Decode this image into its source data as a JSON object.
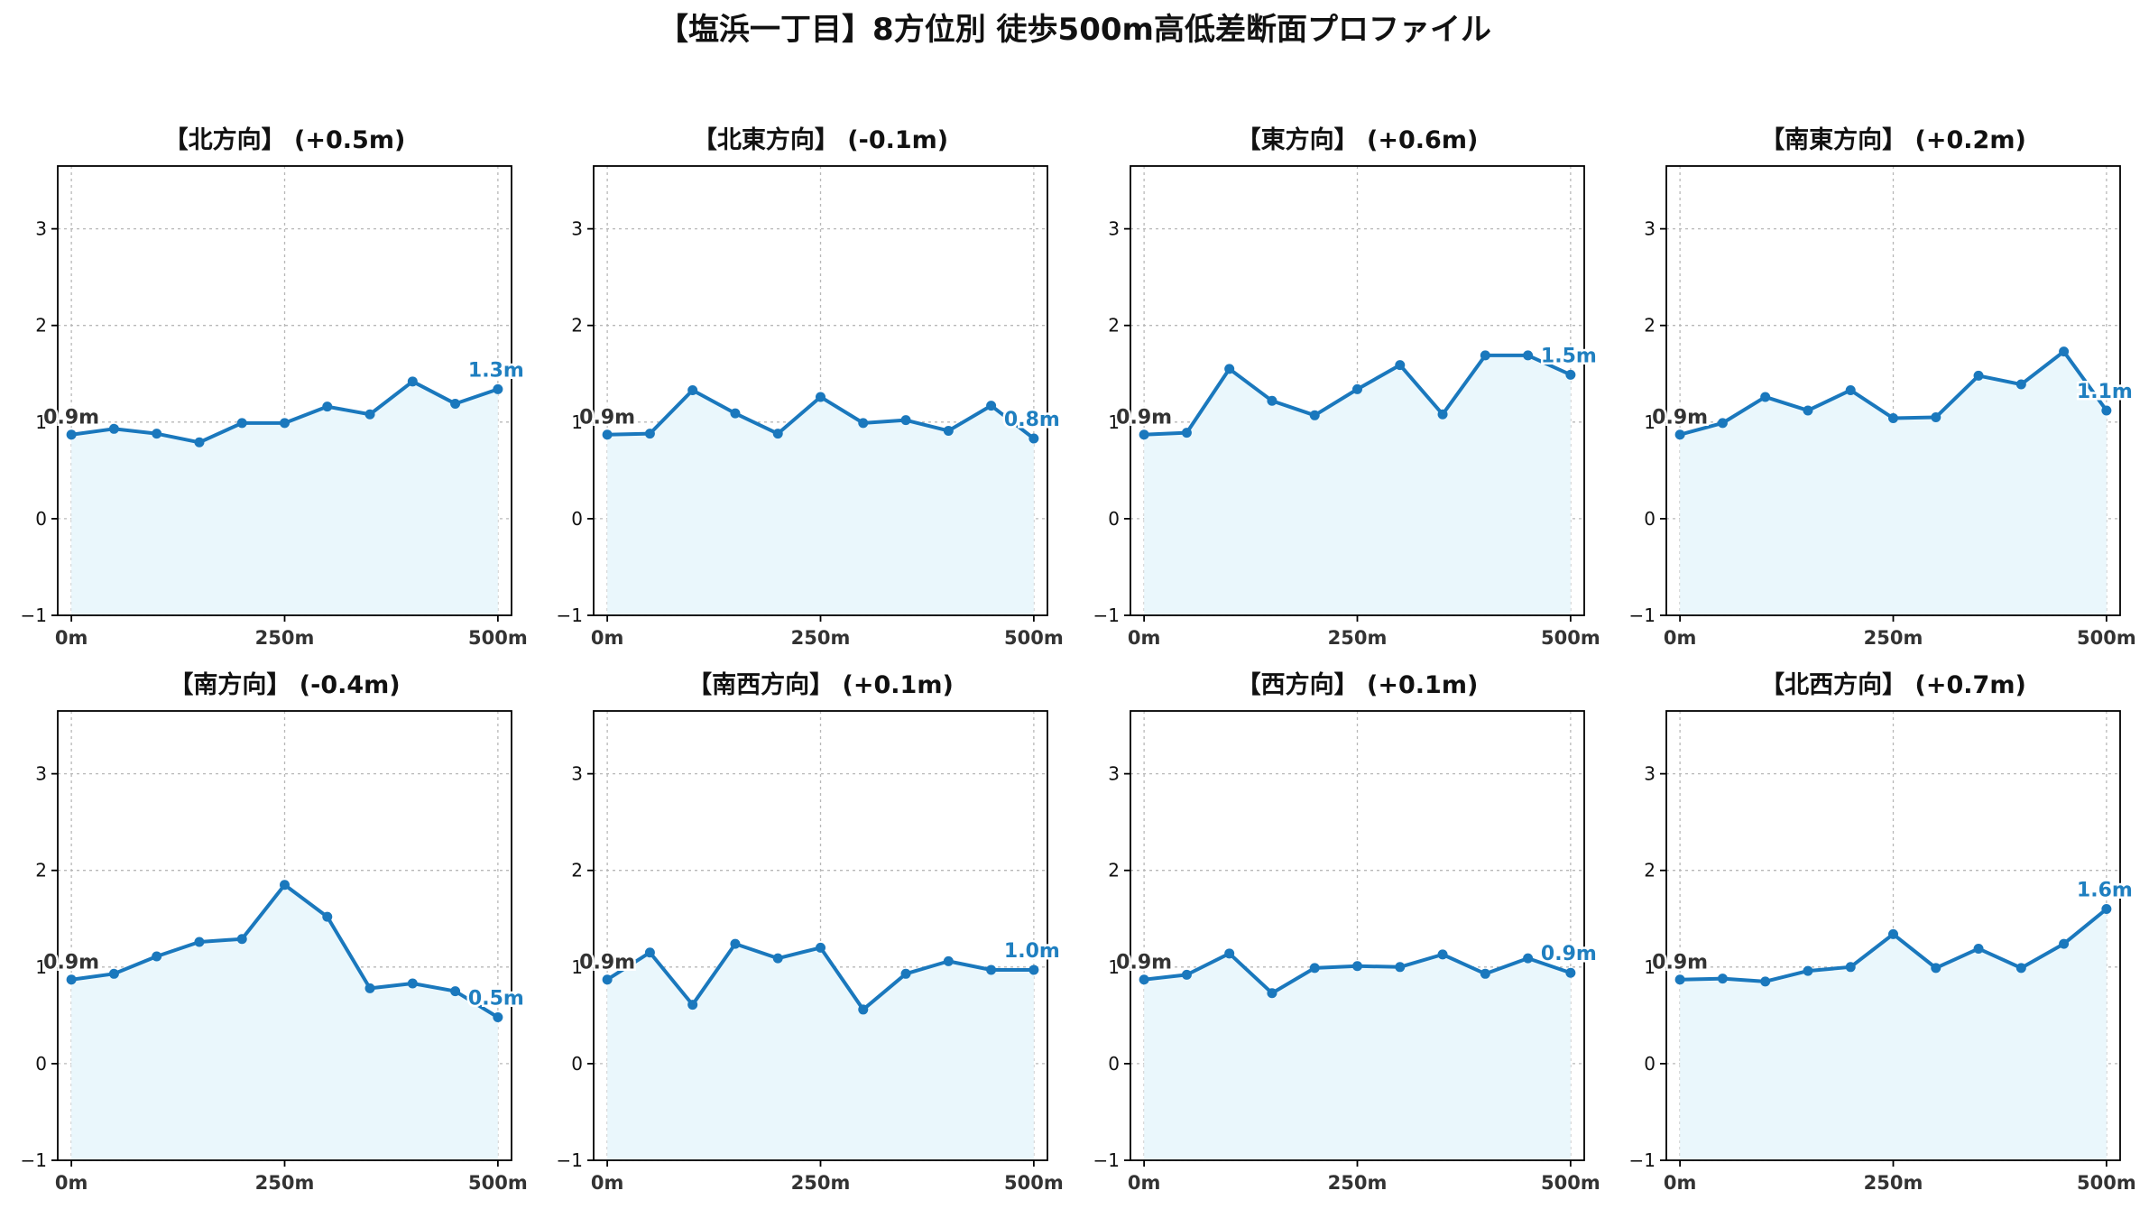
{
  "title": "【塩浜一丁目】8方位別 徒歩500m高低差断面プロファイル",
  "colors": {
    "line": "#1a78bd",
    "fill": "#eaf7fc",
    "end_label": "#1f7fc0",
    "start_label": "#333333"
  },
  "chart_data": [
    {
      "type": "area",
      "title": "【北方向】 (+0.5m)",
      "x": [
        0,
        50,
        100,
        150,
        200,
        250,
        300,
        350,
        400,
        450,
        500
      ],
      "values": [
        0.87,
        0.93,
        0.88,
        0.79,
        0.99,
        0.99,
        1.16,
        1.08,
        1.42,
        1.19,
        1.34
      ],
      "xticks": [
        "0m",
        "250m",
        "500m"
      ],
      "yticks": [
        "−1",
        "0",
        "1",
        "2",
        "3"
      ],
      "ylim": [
        -1,
        3.65
      ],
      "start_label": "0.9m",
      "end_label": "1.3m",
      "grid": true
    },
    {
      "type": "area",
      "title": "【北東方向】 (-0.1m)",
      "x": [
        0,
        50,
        100,
        150,
        200,
        250,
        300,
        350,
        400,
        450,
        500
      ],
      "values": [
        0.87,
        0.88,
        1.33,
        1.09,
        0.88,
        1.26,
        0.99,
        1.02,
        0.91,
        1.17,
        0.83
      ],
      "xticks": [
        "0m",
        "250m",
        "500m"
      ],
      "yticks": [
        "−1",
        "0",
        "1",
        "2",
        "3"
      ],
      "ylim": [
        -1,
        3.65
      ],
      "start_label": "0.9m",
      "end_label": "0.8m",
      "grid": true
    },
    {
      "type": "area",
      "title": "【東方向】 (+0.6m)",
      "x": [
        0,
        50,
        100,
        150,
        200,
        250,
        300,
        350,
        400,
        450,
        500
      ],
      "values": [
        0.87,
        0.89,
        1.55,
        1.22,
        1.07,
        1.34,
        1.59,
        1.08,
        1.69,
        1.69,
        1.49
      ],
      "xticks": [
        "0m",
        "250m",
        "500m"
      ],
      "yticks": [
        "−1",
        "0",
        "1",
        "2",
        "3"
      ],
      "ylim": [
        -1,
        3.65
      ],
      "start_label": "0.9m",
      "end_label": "1.5m",
      "grid": true
    },
    {
      "type": "area",
      "title": "【南東方向】 (+0.2m)",
      "x": [
        0,
        50,
        100,
        150,
        200,
        250,
        300,
        350,
        400,
        450,
        500
      ],
      "values": [
        0.87,
        0.99,
        1.26,
        1.12,
        1.33,
        1.04,
        1.05,
        1.48,
        1.39,
        1.73,
        1.12
      ],
      "xticks": [
        "0m",
        "250m",
        "500m"
      ],
      "yticks": [
        "−1",
        "0",
        "1",
        "2",
        "3"
      ],
      "ylim": [
        -1,
        3.65
      ],
      "start_label": "0.9m",
      "end_label": "1.1m",
      "grid": true
    },
    {
      "type": "area",
      "title": "【南方向】 (-0.4m)",
      "x": [
        0,
        50,
        100,
        150,
        200,
        250,
        300,
        350,
        400,
        450,
        500
      ],
      "values": [
        0.87,
        0.93,
        1.11,
        1.26,
        1.29,
        1.85,
        1.52,
        0.78,
        0.83,
        0.75,
        0.48
      ],
      "xticks": [
        "0m",
        "250m",
        "500m"
      ],
      "yticks": [
        "−1",
        "0",
        "1",
        "2",
        "3"
      ],
      "ylim": [
        -1,
        3.65
      ],
      "start_label": "0.9m",
      "end_label": "0.5m",
      "grid": true
    },
    {
      "type": "area",
      "title": "【南西方向】 (+0.1m)",
      "x": [
        0,
        50,
        100,
        150,
        200,
        250,
        300,
        350,
        400,
        450,
        500
      ],
      "values": [
        0.87,
        1.15,
        0.61,
        1.24,
        1.09,
        1.2,
        0.56,
        0.93,
        1.06,
        0.97,
        0.97
      ],
      "xticks": [
        "0m",
        "250m",
        "500m"
      ],
      "yticks": [
        "−1",
        "0",
        "1",
        "2",
        "3"
      ],
      "ylim": [
        -1,
        3.65
      ],
      "start_label": "0.9m",
      "end_label": "1.0m",
      "grid": true
    },
    {
      "type": "area",
      "title": "【西方向】 (+0.1m)",
      "x": [
        0,
        50,
        100,
        150,
        200,
        250,
        300,
        350,
        400,
        450,
        500
      ],
      "values": [
        0.87,
        0.92,
        1.14,
        0.73,
        0.99,
        1.01,
        1.0,
        1.13,
        0.93,
        1.09,
        0.94
      ],
      "xticks": [
        "0m",
        "250m",
        "500m"
      ],
      "yticks": [
        "−1",
        "0",
        "1",
        "2",
        "3"
      ],
      "ylim": [
        -1,
        3.65
      ],
      "start_label": "0.9m",
      "end_label": "0.9m",
      "grid": true
    },
    {
      "type": "area",
      "title": "【北西方向】 (+0.7m)",
      "x": [
        0,
        50,
        100,
        150,
        200,
        250,
        300,
        350,
        400,
        450,
        500
      ],
      "values": [
        0.87,
        0.88,
        0.85,
        0.96,
        1.0,
        1.34,
        0.99,
        1.19,
        0.99,
        1.24,
        1.6
      ],
      "xticks": [
        "0m",
        "250m",
        "500m"
      ],
      "yticks": [
        "−1",
        "0",
        "1",
        "2",
        "3"
      ],
      "ylim": [
        -1,
        3.65
      ],
      "start_label": "0.9m",
      "end_label": "1.6m",
      "grid": true
    }
  ]
}
